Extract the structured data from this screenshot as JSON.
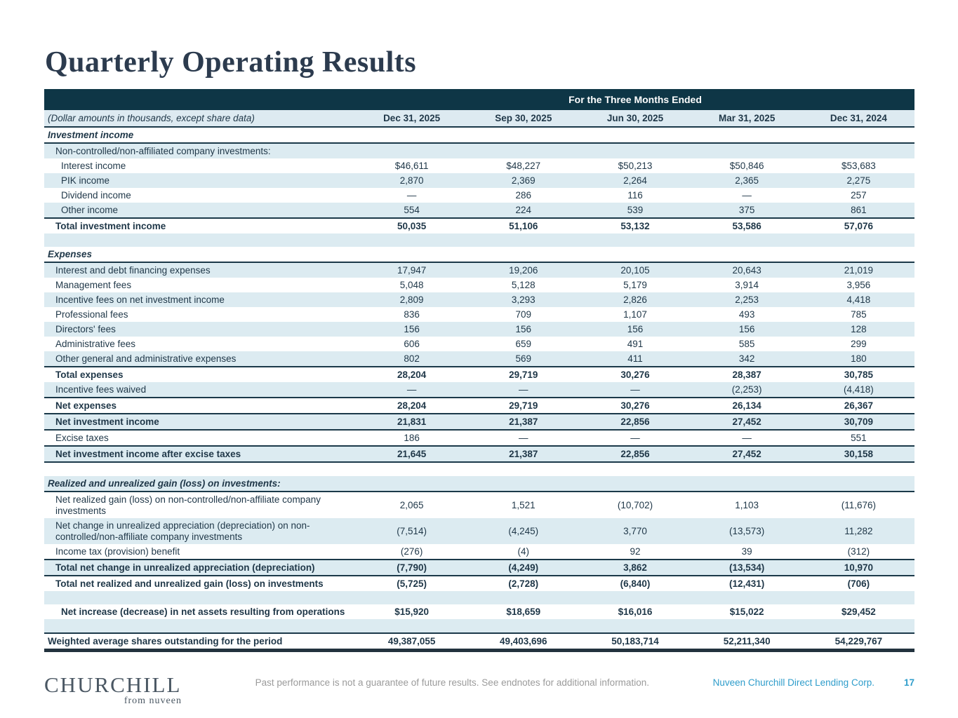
{
  "page": {
    "title": "Quarterly Operating Results"
  },
  "colors": {
    "banner_bg": "#0e3646",
    "stripe_bg": "#dcebf1",
    "rule": "#1b3949",
    "text": "#1f3748",
    "accent_blue": "#2f9dcb",
    "title": "#2c3b4e"
  },
  "table": {
    "banner": "For the Three Months Ended",
    "note": "(Dollar amounts in thousands, except share data)",
    "columns": [
      "Dec 31, 2025",
      "Sep 30, 2025",
      "Jun 30, 2025",
      "Mar 31, 2025",
      "Dec 31, 2024"
    ],
    "rows": [
      {
        "type": "section",
        "label": "Investment income",
        "indent": 0,
        "shaded": false,
        "bb": true
      },
      {
        "type": "item",
        "label": "Non-controlled/non-affiliated company investments:",
        "indent": 1,
        "shaded": true
      },
      {
        "type": "item",
        "label": "Interest income",
        "indent": 2,
        "shaded": false,
        "values": [
          "$46,611",
          "$48,227",
          "$50,213",
          "$50,846",
          "$53,683"
        ]
      },
      {
        "type": "item",
        "label": "PIK income",
        "indent": 2,
        "shaded": true,
        "values": [
          "2,870",
          "2,369",
          "2,264",
          "2,365",
          "2,275"
        ]
      },
      {
        "type": "item",
        "label": "Dividend income",
        "indent": 2,
        "shaded": false,
        "values": [
          "—",
          "286",
          "116",
          "—",
          "257"
        ]
      },
      {
        "type": "item",
        "label": "Other income",
        "indent": 2,
        "shaded": true,
        "values": [
          "554",
          "224",
          "539",
          "375",
          "861"
        ]
      },
      {
        "type": "total",
        "label": "Total investment income",
        "indent": 1,
        "shaded": false,
        "bt": true,
        "values": [
          "50,035",
          "51,106",
          "53,132",
          "53,586",
          "57,076"
        ]
      },
      {
        "type": "blank",
        "shaded": true
      },
      {
        "type": "section",
        "label": "Expenses",
        "indent": 0,
        "shaded": false,
        "bb": true
      },
      {
        "type": "item",
        "label": "Interest and debt financing expenses",
        "indent": 1,
        "shaded": true,
        "values": [
          "17,947",
          "19,206",
          "20,105",
          "20,643",
          "21,019"
        ]
      },
      {
        "type": "item",
        "label": "Management fees",
        "indent": 1,
        "shaded": false,
        "values": [
          "5,048",
          "5,128",
          "5,179",
          "3,914",
          "3,956"
        ]
      },
      {
        "type": "item",
        "label": "Incentive fees on net investment income",
        "indent": 1,
        "shaded": true,
        "values": [
          "2,809",
          "3,293",
          "2,826",
          "2,253",
          "4,418"
        ]
      },
      {
        "type": "item",
        "label": "Professional fees",
        "indent": 1,
        "shaded": false,
        "values": [
          "836",
          "709",
          "1,107",
          "493",
          "785"
        ]
      },
      {
        "type": "item",
        "label": "Directors' fees",
        "indent": 1,
        "shaded": true,
        "values": [
          "156",
          "156",
          "156",
          "156",
          "128"
        ]
      },
      {
        "type": "item",
        "label": "Administrative fees",
        "indent": 1,
        "shaded": false,
        "values": [
          "606",
          "659",
          "491",
          "585",
          "299"
        ]
      },
      {
        "type": "item",
        "label": "Other general and administrative expenses",
        "indent": 1,
        "shaded": true,
        "values": [
          "802",
          "569",
          "411",
          "342",
          "180"
        ]
      },
      {
        "type": "total",
        "label": "Total expenses",
        "indent": 1,
        "shaded": false,
        "bt": true,
        "values": [
          "28,204",
          "29,719",
          "30,276",
          "28,387",
          "30,785"
        ]
      },
      {
        "type": "item",
        "label": "Incentive fees waived",
        "indent": 1,
        "shaded": true,
        "values": [
          "—",
          "—",
          "—",
          "(2,253)",
          "(4,418)"
        ]
      },
      {
        "type": "total",
        "label": "Net expenses",
        "indent": 1,
        "shaded": false,
        "bt": true,
        "values": [
          "28,204",
          "29,719",
          "30,276",
          "26,134",
          "26,367"
        ]
      },
      {
        "type": "total",
        "label": "Net investment income",
        "indent": 1,
        "shaded": true,
        "bt": true,
        "bb": true,
        "values": [
          "21,831",
          "21,387",
          "22,856",
          "27,452",
          "30,709"
        ]
      },
      {
        "type": "item",
        "label": "Excise taxes",
        "indent": 1,
        "shaded": false,
        "values": [
          "186",
          "—",
          "—",
          "—",
          "551"
        ]
      },
      {
        "type": "total",
        "label": "Net investment income after excise taxes",
        "indent": 1,
        "shaded": true,
        "bt": true,
        "bb": true,
        "values": [
          "21,645",
          "21,387",
          "22,856",
          "27,452",
          "30,158"
        ]
      },
      {
        "type": "blank",
        "shaded": false
      },
      {
        "type": "section",
        "label": "Realized and unrealized gain (loss) on investments:",
        "indent": 0,
        "shaded": true,
        "bb": true
      },
      {
        "type": "item",
        "label": "Net realized gain (loss) on non-controlled/non-affiliate company investments",
        "indent": 1,
        "shaded": false,
        "values": [
          "2,065",
          "1,521",
          "(10,702)",
          "1,103",
          "(11,676)"
        ]
      },
      {
        "type": "item",
        "label": "Net change in unrealized appreciation (depreciation) on non-controlled/non-affiliate company investments",
        "indent": 1,
        "shaded": true,
        "values": [
          "(7,514)",
          "(4,245)",
          "3,770",
          "(13,573)",
          "11,282"
        ]
      },
      {
        "type": "item",
        "label": "Income tax (provision) benefit",
        "indent": 1,
        "shaded": false,
        "values": [
          "(276)",
          "(4)",
          "92",
          "39",
          "(312)"
        ]
      },
      {
        "type": "total",
        "label": "Total net change in unrealized appreciation (depreciation)",
        "indent": 1,
        "shaded": true,
        "bt": true,
        "bb": true,
        "values": [
          "(7,790)",
          "(4,249)",
          "3,862",
          "(13,534)",
          "10,970"
        ]
      },
      {
        "type": "total",
        "label": "Total net realized and unrealized gain (loss) on investments",
        "indent": 1,
        "shaded": false,
        "values": [
          "(5,725)",
          "(2,728)",
          "(6,840)",
          "(12,431)",
          "(706)"
        ]
      },
      {
        "type": "blank",
        "shaded": true
      },
      {
        "type": "total",
        "label": "Net increase (decrease) in net assets resulting from operations",
        "indent": 2,
        "shaded": false,
        "values": [
          "$15,920",
          "$18,659",
          "$16,016",
          "$15,022",
          "$29,452"
        ]
      },
      {
        "type": "blank",
        "shaded": true
      },
      {
        "type": "total",
        "label": "Weighted average shares outstanding for the period",
        "indent": 0,
        "shaded": false,
        "bt": true,
        "values": [
          "49,387,055",
          "49,403,696",
          "50,183,714",
          "52,211,340",
          "54,229,767"
        ]
      }
    ]
  },
  "footer": {
    "logo": "CHURCHILL",
    "logo_sub": "from nuveen",
    "disclaimer": "Past performance is not a guarantee of future results. See endnotes for additional information.",
    "company": "Nuveen Churchill Direct Lending Corp.",
    "page_number": "17"
  }
}
